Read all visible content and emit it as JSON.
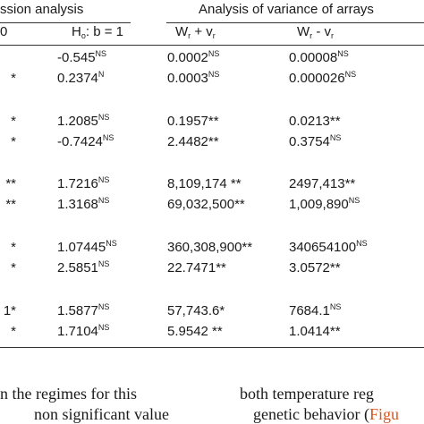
{
  "table": {
    "group_left": "ssion analysis",
    "group_right": "Analysis of variance of arrays",
    "columns": [
      [
        {
          "text": "0"
        }
      ],
      [
        {
          "text": "H"
        },
        {
          "sub": "o"
        },
        {
          "text": ": b = 1"
        }
      ],
      [
        {
          "text": "W"
        },
        {
          "sub": "r"
        },
        {
          "text": " + v"
        },
        {
          "sub": "r"
        }
      ],
      [
        {
          "text": "W"
        },
        {
          "sub": "r"
        },
        {
          "text": " - v"
        },
        {
          "sub": "r"
        }
      ]
    ],
    "groups": [
      [
        [
          null,
          {
            "text": "-0.545",
            "sup": "NS"
          },
          {
            "text": "0.0002",
            "sup": "NS"
          },
          {
            "text": "0.00008",
            "sup": "NS"
          }
        ],
        [
          {
            "text": "*"
          },
          {
            "text": "0.2374",
            "sup": "N"
          },
          {
            "text": "0.0003",
            "sup": "NS"
          },
          {
            "text": "0.000026",
            "sup": "NS"
          }
        ]
      ],
      [
        [
          {
            "text": "*"
          },
          {
            "text": "1.2085",
            "sup": "NS"
          },
          {
            "text": "0.1957**"
          },
          {
            "text": "0.0213**"
          }
        ],
        [
          {
            "text": "*"
          },
          {
            "text": "-0.7424",
            "sup": "NS"
          },
          {
            "text": "2.4482**"
          },
          {
            "text": "0.3754",
            "sup": "NS"
          }
        ]
      ],
      [
        [
          {
            "text": "**"
          },
          {
            "text": "1.7216",
            "sup": "NS"
          },
          {
            "text": "8,109,174 **"
          },
          {
            "text": "2497,413**"
          }
        ],
        [
          {
            "text": "**"
          },
          {
            "text": "1.3168",
            "sup": "NS"
          },
          {
            "text": "69,032,500**"
          },
          {
            "text": "1,009,890",
            "sup": "NS"
          }
        ]
      ],
      [
        [
          {
            "text": "*"
          },
          {
            "text": "1.07445",
            "sup": "NS"
          },
          {
            "text": "360,308,900**"
          },
          {
            "text": "340654100",
            "sup": "NS"
          }
        ],
        [
          {
            "text": "*"
          },
          {
            "text": "2.5851",
            "sup": "NS"
          },
          {
            "text": "22.7471**"
          },
          {
            "text": "3.0572**"
          }
        ]
      ],
      [
        [
          {
            "text": "1*"
          },
          {
            "text": "1.5877",
            "sup": "NS"
          },
          {
            "text": "57,743.6*"
          },
          {
            "text": "7684.1",
            "sup": "NS"
          }
        ],
        [
          {
            "text": "*"
          },
          {
            "text": "1.7104",
            "sup": "NS"
          },
          {
            "text": "5.9542 **"
          },
          {
            "text": "1.0414**"
          }
        ]
      ]
    ]
  },
  "body_text": {
    "left": [
      "n the regimes for this",
      "non significant value"
    ],
    "right": [
      {
        "text": "both temperature reg"
      },
      {
        "text": "genetic behavior (",
        "link": "Figu"
      }
    ]
  }
}
